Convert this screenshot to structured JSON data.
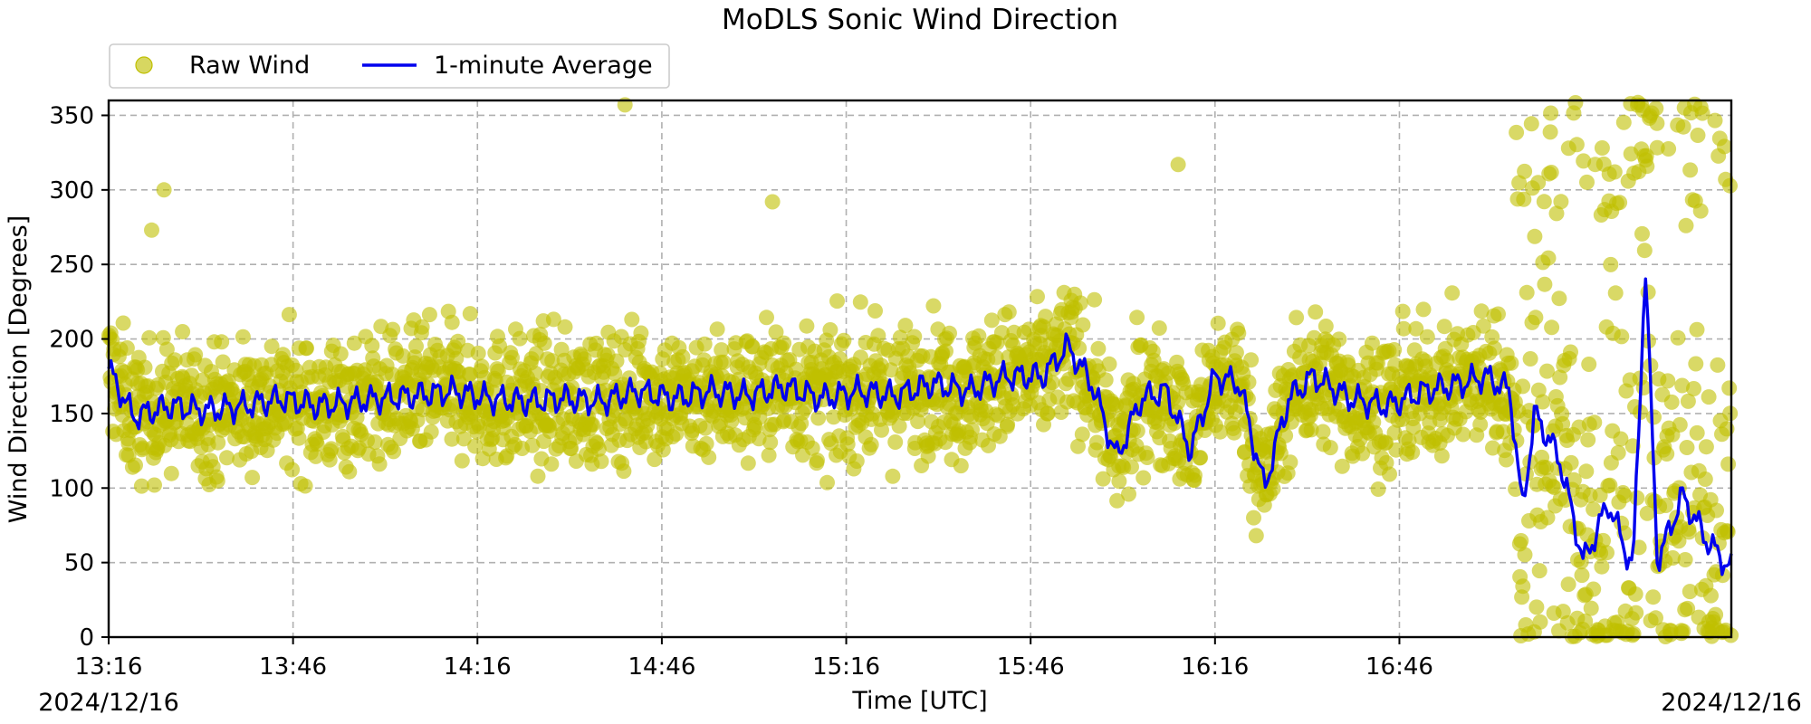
{
  "chart_data": {
    "type": "scatter",
    "title": "MoDLS Sonic Wind Direction",
    "xlabel": "Time [UTC]",
    "ylabel": "Wind Direction [Degrees]",
    "x_start_date": "2024/12/16",
    "x_end_date": "2024/12/16",
    "x_range": [
      "13:16",
      "17:40"
    ],
    "ylim": [
      0,
      360
    ],
    "y_ticks": [
      0,
      50,
      100,
      150,
      200,
      250,
      300,
      350
    ],
    "x_ticks": [
      "13:16",
      "13:46",
      "14:16",
      "14:46",
      "15:16",
      "15:46",
      "16:16",
      "16:46"
    ],
    "grid": true,
    "legend_position": "top-left",
    "series": [
      {
        "name": "Raw Wind",
        "kind": "scatter",
        "color": "#bfbf00",
        "x": [
          "13:16",
          "13:20",
          "13:24",
          "13:26",
          "13:30",
          "13:35",
          "13:40",
          "13:43",
          "13:48",
          "13:55",
          "14:00",
          "14:08",
          "14:14",
          "14:20",
          "14:25",
          "14:30",
          "14:35",
          "14:40",
          "14:46",
          "14:55",
          "15:00",
          "15:06",
          "15:10",
          "15:16",
          "15:24",
          "15:30",
          "15:38",
          "15:46",
          "15:55",
          "16:00",
          "16:08",
          "16:16",
          "16:24",
          "16:30",
          "16:38",
          "16:46",
          "16:55",
          "17:00",
          "17:05",
          "17:10",
          "17:16",
          "17:20",
          "17:25",
          "17:30",
          "17:35",
          "17:40"
        ],
        "values": [
          150,
          155,
          145,
          160,
          150,
          140,
          160,
          150,
          155,
          160,
          150,
          165,
          155,
          160,
          150,
          165,
          155,
          160,
          150,
          160,
          155,
          165,
          150,
          165,
          160,
          170,
          165,
          170,
          160,
          140,
          160,
          165,
          130,
          170,
          160,
          160,
          165,
          165,
          150,
          60,
          120,
          50,
          300,
          70,
          50,
          60
        ],
        "notable": [
          {
            "x": "13:25",
            "y": 300
          },
          {
            "x": "13:23",
            "y": 273
          },
          {
            "x": "14:40",
            "y": 357
          },
          {
            "x": "15:04",
            "y": 292
          },
          {
            "x": "16:10",
            "y": 317
          }
        ]
      },
      {
        "name": "1-minute Average",
        "kind": "line",
        "color": "#0000ee",
        "x": [
          "13:16",
          "13:20",
          "13:26",
          "13:32",
          "13:38",
          "13:44",
          "13:50",
          "13:56",
          "14:00",
          "14:06",
          "14:12",
          "14:18",
          "14:24",
          "14:30",
          "14:36",
          "14:42",
          "14:48",
          "14:54",
          "15:00",
          "15:06",
          "15:12",
          "15:18",
          "15:24",
          "15:30",
          "15:36",
          "15:42",
          "15:48",
          "15:52",
          "15:56",
          "16:00",
          "16:04",
          "16:08",
          "16:12",
          "16:16",
          "16:20",
          "16:24",
          "16:28",
          "16:32",
          "16:38",
          "16:44",
          "16:50",
          "16:56",
          "17:00",
          "17:04",
          "17:06",
          "17:08",
          "17:12",
          "17:16",
          "17:20",
          "17:24",
          "17:26",
          "17:28",
          "17:32",
          "17:36",
          "17:40"
        ],
        "values": [
          180,
          148,
          155,
          152,
          155,
          160,
          155,
          158,
          160,
          162,
          165,
          160,
          158,
          160,
          158,
          165,
          160,
          165,
          162,
          168,
          160,
          165,
          162,
          170,
          165,
          175,
          175,
          195,
          170,
          120,
          160,
          165,
          125,
          175,
          170,
          100,
          160,
          175,
          160,
          155,
          165,
          170,
          175,
          165,
          85,
          150,
          120,
          50,
          90,
          45,
          250,
          50,
          95,
          65,
          45
        ]
      }
    ]
  }
}
